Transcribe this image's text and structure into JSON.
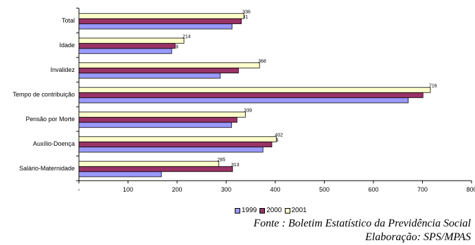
{
  "chart_data": {
    "type": "bar",
    "orientation": "horizontal",
    "categories": [
      "Total",
      "Idade",
      "Invalidez",
      "Tempo de contribuição",
      "Pensão por Morte",
      "Auxílio-Doença",
      "Salário-Maternidade"
    ],
    "series": [
      {
        "name": "1999",
        "color": "#9999ff",
        "values": [
          312,
          189,
          288,
          671,
          311,
          375,
          168
        ]
      },
      {
        "name": "2000",
        "color": "#993366",
        "values": [
          331,
          196,
          325,
          701,
          322,
          393,
          313
        ]
      },
      {
        "name": "2001",
        "color": "#ffffcc",
        "values": [
          336,
          214,
          368,
          716,
          339,
          402,
          285
        ]
      }
    ],
    "xlim": [
      0,
      800
    ],
    "x_ticks": [
      {
        "value": 0,
        "label": "-"
      },
      {
        "value": 100,
        "label": "100"
      },
      {
        "value": 200,
        "label": "200"
      },
      {
        "value": 300,
        "label": "300"
      },
      {
        "value": 400,
        "label": "400"
      },
      {
        "value": 500,
        "label": "500"
      },
      {
        "value": 600,
        "label": "600"
      },
      {
        "value": 700,
        "label": "700"
      },
      {
        "value": 800,
        "label": "800"
      }
    ],
    "grid": false,
    "legend_position": "bottom"
  },
  "footer": {
    "source": "Fonte :  Boletim Estatístico da Previdência Social",
    "credit": "Elaboração: SPS/MPAS"
  }
}
